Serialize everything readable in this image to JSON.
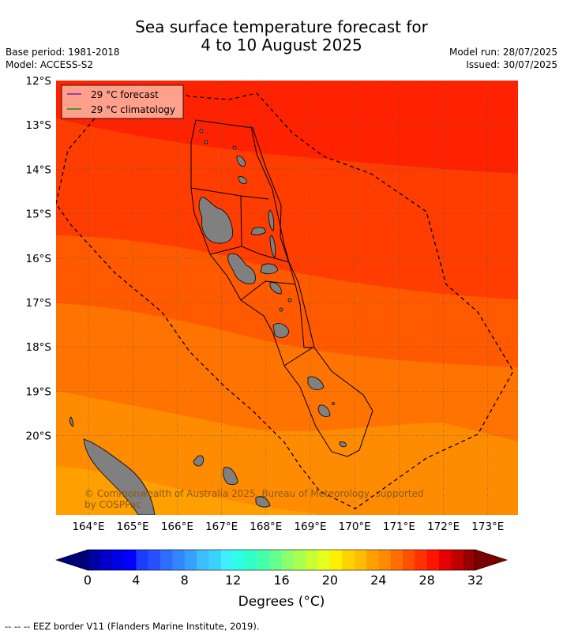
{
  "header": {
    "title_line1": "Sea surface temperature forecast for",
    "title_line2": "4 to 10 August 2025",
    "base_period": "Base period: 1981-2018",
    "model": "Model: ACCESS-S2",
    "model_run": "Model run: 28/07/2025",
    "issued": "Issued: 30/07/2025"
  },
  "map": {
    "lat_labels": [
      "12°S",
      "13°S",
      "14°S",
      "15°S",
      "16°S",
      "17°S",
      "18°S",
      "19°S",
      "20°S"
    ],
    "lon_labels": [
      "164°E",
      "165°E",
      "166°E",
      "167°E",
      "168°E",
      "169°E",
      "170°E",
      "171°E",
      "172°E",
      "173°E"
    ],
    "legend": [
      {
        "label": "29 °C  forecast",
        "color": "#7b1fa2"
      },
      {
        "label": "29 °C  climatology",
        "color": "#1b8a1b"
      }
    ],
    "copyright": "© Commonwealth of Australia 2025, Bureau of Meteorology, supported",
    "copyright2": "by COSPPac",
    "band_colors": [
      "#ff2200",
      "#ff3d00",
      "#ff5a00",
      "#ff7300",
      "#ff8c00",
      "#ffa000"
    ]
  },
  "colorbar": {
    "tick_labels": [
      "0",
      "4",
      "8",
      "12",
      "16",
      "20",
      "24",
      "28",
      "32"
    ],
    "label": "Degrees (°C)",
    "colors": [
      "#0000a0",
      "#0000c8",
      "#0000e6",
      "#0000ff",
      "#1e3cff",
      "#2850ff",
      "#2d6eff",
      "#3287ff",
      "#37a0ff",
      "#3cbeff",
      "#3cd2ff",
      "#3cf0ff",
      "#2dffe6",
      "#32ffc8",
      "#46ffaa",
      "#64ff8c",
      "#8cff6e",
      "#aaff50",
      "#c8ff32",
      "#e6ff1e",
      "#fff000",
      "#ffd200",
      "#ffbe00",
      "#ffa000",
      "#ff8c00",
      "#ff6e00",
      "#ff5000",
      "#ff3200",
      "#ff1400",
      "#e60000",
      "#be0000",
      "#960000"
    ],
    "under_color": "#00007a",
    "over_color": "#7a0000"
  },
  "footer": "--  --  -- EEZ border V11 (Flanders Marine Institute, 2019)."
}
